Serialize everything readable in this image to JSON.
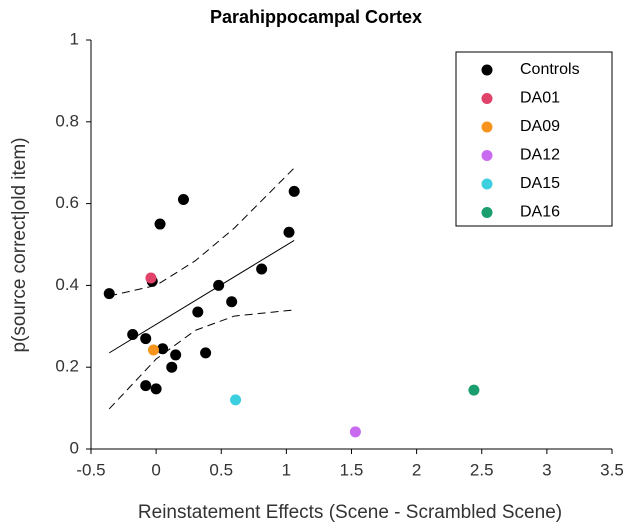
{
  "chart_data": {
    "type": "scatter",
    "title": "Parahippocampal Cortex",
    "xlabel": "Reinstatement Effects (Scene - Scrambled Scene)",
    "ylabel": "p(source correct|old item)",
    "xlim": [
      -0.5,
      3.5
    ],
    "xticks": [
      -0.5,
      0,
      0.5,
      1,
      1.5,
      2,
      2.5,
      3,
      3.5
    ],
    "ylim": [
      0,
      1
    ],
    "yticks": [
      0,
      0.2,
      0.4,
      0.6,
      0.8,
      1
    ],
    "legend": "upper right",
    "series": [
      {
        "name": "Controls",
        "color": "#000000",
        "x": [
          -0.36,
          -0.03,
          0.03,
          0.21,
          1.06,
          1.02,
          0.81,
          0.48,
          0.58,
          0.32,
          -0.18,
          -0.08,
          0.05,
          0.15,
          0.38,
          0.12,
          -0.08,
          0.0
        ],
        "values": [
          0.38,
          0.41,
          0.55,
          0.61,
          0.63,
          0.53,
          0.44,
          0.4,
          0.36,
          0.335,
          0.28,
          0.27,
          0.245,
          0.23,
          0.235,
          0.2,
          0.155,
          0.147
        ]
      },
      {
        "name": "DA01",
        "color": "#e0426a",
        "x": [
          -0.04
        ],
        "values": [
          0.418
        ]
      },
      {
        "name": "DA09",
        "color": "#f7941d",
        "x": [
          -0.02
        ],
        "values": [
          0.242
        ]
      },
      {
        "name": "DA12",
        "color": "#c86bf0",
        "x": [
          1.53
        ],
        "values": [
          0.042
        ]
      },
      {
        "name": "DA15",
        "color": "#3ccfe0",
        "x": [
          0.61
        ],
        "values": [
          0.12
        ]
      },
      {
        "name": "DA16",
        "color": "#1a9e6e",
        "x": [
          2.44
        ],
        "values": [
          0.144
        ]
      }
    ],
    "fit": {
      "x": [
        -0.36,
        1.06
      ],
      "values": [
        0.235,
        0.51
      ]
    },
    "ci_upper": {
      "x": [
        -0.36,
        0,
        0.3,
        0.6,
        1.06
      ],
      "values": [
        0.374,
        0.4,
        0.46,
        0.54,
        0.687
      ]
    },
    "ci_lower": {
      "x": [
        -0.36,
        0,
        0.3,
        0.6,
        1.06
      ],
      "values": [
        0.098,
        0.22,
        0.29,
        0.325,
        0.34
      ]
    }
  }
}
